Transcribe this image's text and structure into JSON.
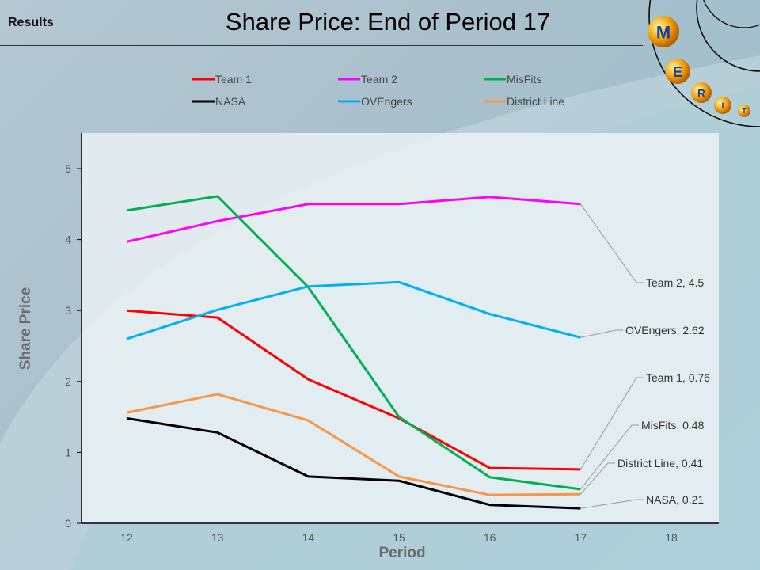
{
  "header": {
    "label": "Results",
    "title": "Share Price: End of Period 17"
  },
  "logo": {
    "letters": [
      "M",
      "E",
      "R",
      "I",
      "T"
    ]
  },
  "chart_data": {
    "type": "line",
    "title": "Share Price: End of Period 17",
    "xlabel": "Period",
    "ylabel": "Share Price",
    "xlim": [
      12,
      18
    ],
    "ylim": [
      0,
      5
    ],
    "x": [
      12,
      13,
      14,
      15,
      16,
      17
    ],
    "xticks": [
      "12",
      "13",
      "14",
      "15",
      "16",
      "17",
      "18"
    ],
    "yticks": [
      "0",
      "1",
      "2",
      "3",
      "4",
      "5"
    ],
    "legend_position": "top",
    "series": [
      {
        "name": "Team 1",
        "color": "#ff0000",
        "values": [
          3.0,
          2.9,
          2.03,
          1.48,
          0.78,
          0.76
        ],
        "label": "Team 1, 0.76"
      },
      {
        "name": "Team 2",
        "color": "#ff00ff",
        "values": [
          3.97,
          4.26,
          4.5,
          4.5,
          4.6,
          4.5
        ],
        "label": "Team 2, 4.5"
      },
      {
        "name": "MisFits",
        "color": "#00b050",
        "values": [
          4.41,
          4.61,
          3.33,
          1.5,
          0.65,
          0.48
        ],
        "label": "MisFits, 0.48"
      },
      {
        "name": "NASA",
        "color": "#000000",
        "values": [
          1.48,
          1.28,
          0.66,
          0.6,
          0.26,
          0.21
        ],
        "label": "NASA, 0.21"
      },
      {
        "name": "OVEngers",
        "color": "#00b0f0",
        "values": [
          2.6,
          3.01,
          3.34,
          3.4,
          2.95,
          2.62
        ],
        "label": "OVEngers, 2.62"
      },
      {
        "name": "District Line",
        "color": "#f79646",
        "values": [
          1.56,
          1.82,
          1.45,
          0.66,
          0.4,
          0.41
        ],
        "label": "District Line, 0.41"
      }
    ]
  }
}
